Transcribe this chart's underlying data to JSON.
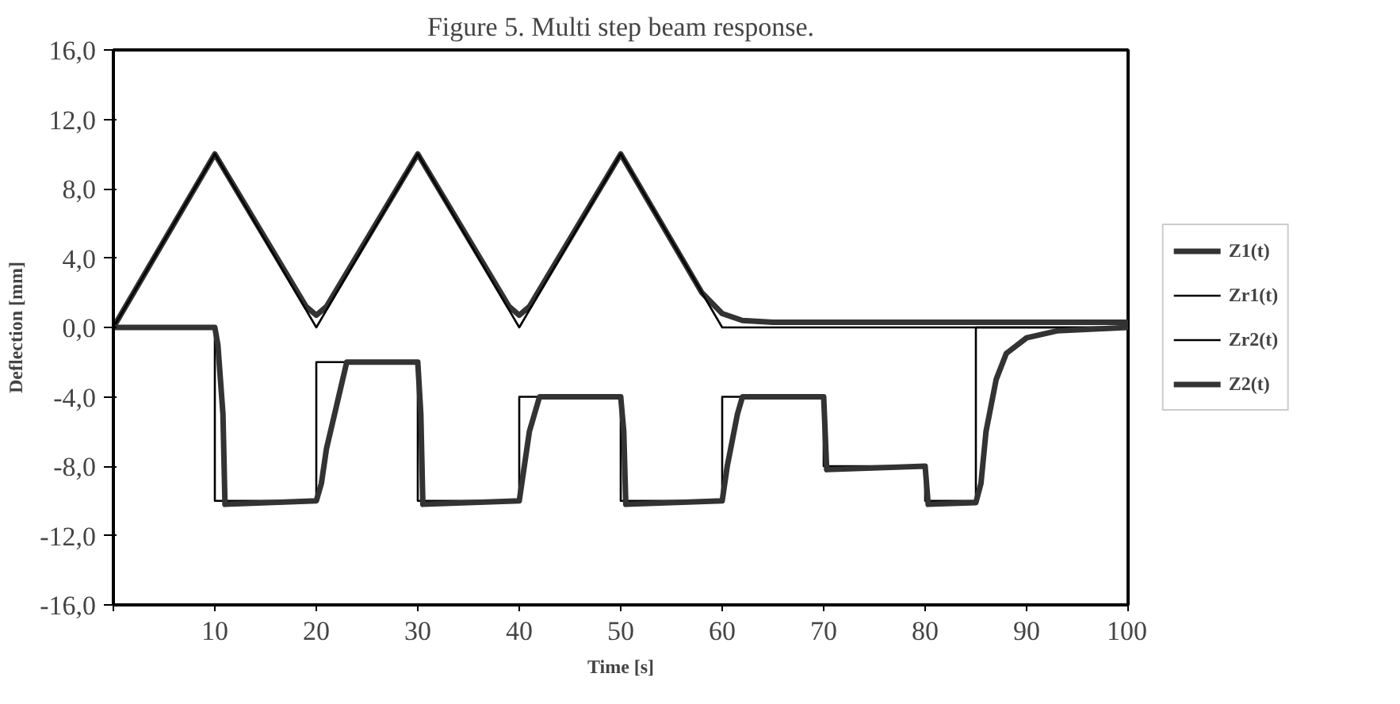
{
  "chart_data": {
    "type": "line",
    "title": "Figure 5. Multi step beam response.",
    "xlabel": "Time [s]",
    "ylabel": "Deflection [mm]",
    "xlim": [
      0,
      100
    ],
    "xticks": [
      {
        "value": 0,
        "label": null
      },
      10,
      20,
      30,
      40,
      50,
      60,
      70,
      80,
      90,
      100
    ],
    "ylim": [
      -16,
      16
    ],
    "yticks": [
      {
        "value": -16,
        "label": "-16,0"
      },
      {
        "value": -12,
        "label": "-12,0"
      },
      {
        "value": -8,
        "label": "-8,0"
      },
      {
        "value": -4,
        "label": "-4,0"
      },
      {
        "value": 0,
        "label": "0,0"
      },
      {
        "value": 4,
        "label": "4,0"
      },
      {
        "value": 8,
        "label": "8,0"
      },
      {
        "value": 12,
        "label": "12,0"
      },
      {
        "value": 16,
        "label": "16,0"
      }
    ],
    "grid": false,
    "legend": "right",
    "marker": "none",
    "line_style": "solid",
    "series": [
      {
        "name": "Z1(t)",
        "color": "#333333",
        "x": [
          0,
          10,
          19,
          20,
          21,
          30,
          39,
          40,
          41,
          50,
          58,
          60,
          62,
          65,
          100
        ],
        "values": [
          0,
          10,
          1.2,
          0.7,
          1.2,
          10,
          1.2,
          0.7,
          1.2,
          10,
          2,
          0.8,
          0.4,
          0.3,
          0.3
        ]
      },
      {
        "name": "Zr1(t)",
        "color": "#000000",
        "x": [
          0,
          10,
          20,
          30,
          40,
          50,
          60,
          100
        ],
        "values": [
          0,
          10,
          0,
          10,
          0,
          10,
          0,
          0
        ]
      },
      {
        "name": "Zr2(t)",
        "color": "#000000",
        "x": [
          0,
          10,
          10,
          20,
          20,
          30,
          30,
          40,
          40,
          50,
          50,
          60,
          60,
          70,
          70,
          80,
          80,
          85,
          85,
          100
        ],
        "values": [
          0,
          0,
          -10,
          -10,
          -2,
          -2,
          -10,
          -10,
          -4,
          -4,
          -10,
          -10,
          -4,
          -4,
          -8,
          -8,
          -10,
          -10,
          0,
          0
        ]
      },
      {
        "name": "Z2(t)",
        "color": "#333333",
        "x": [
          0,
          10,
          10.3,
          10.8,
          11,
          20,
          20.5,
          21,
          22,
          23,
          30,
          30.3,
          30.5,
          40,
          40.5,
          41,
          42,
          50,
          50.3,
          50.5,
          60,
          60.5,
          61.5,
          62,
          70,
          70.3,
          80,
          80.3,
          85,
          85.5,
          86,
          87,
          88,
          90,
          93,
          100
        ],
        "values": [
          0,
          0,
          -1,
          -5,
          -10.2,
          -10,
          -9,
          -7,
          -4.5,
          -2,
          -2,
          -5,
          -10.2,
          -10,
          -8,
          -6,
          -4,
          -4,
          -6,
          -10.2,
          -10,
          -8,
          -5,
          -4,
          -4,
          -8.2,
          -8,
          -10.2,
          -10.1,
          -9,
          -6,
          -3,
          -1.5,
          -0.6,
          -0.2,
          0
        ]
      }
    ]
  }
}
